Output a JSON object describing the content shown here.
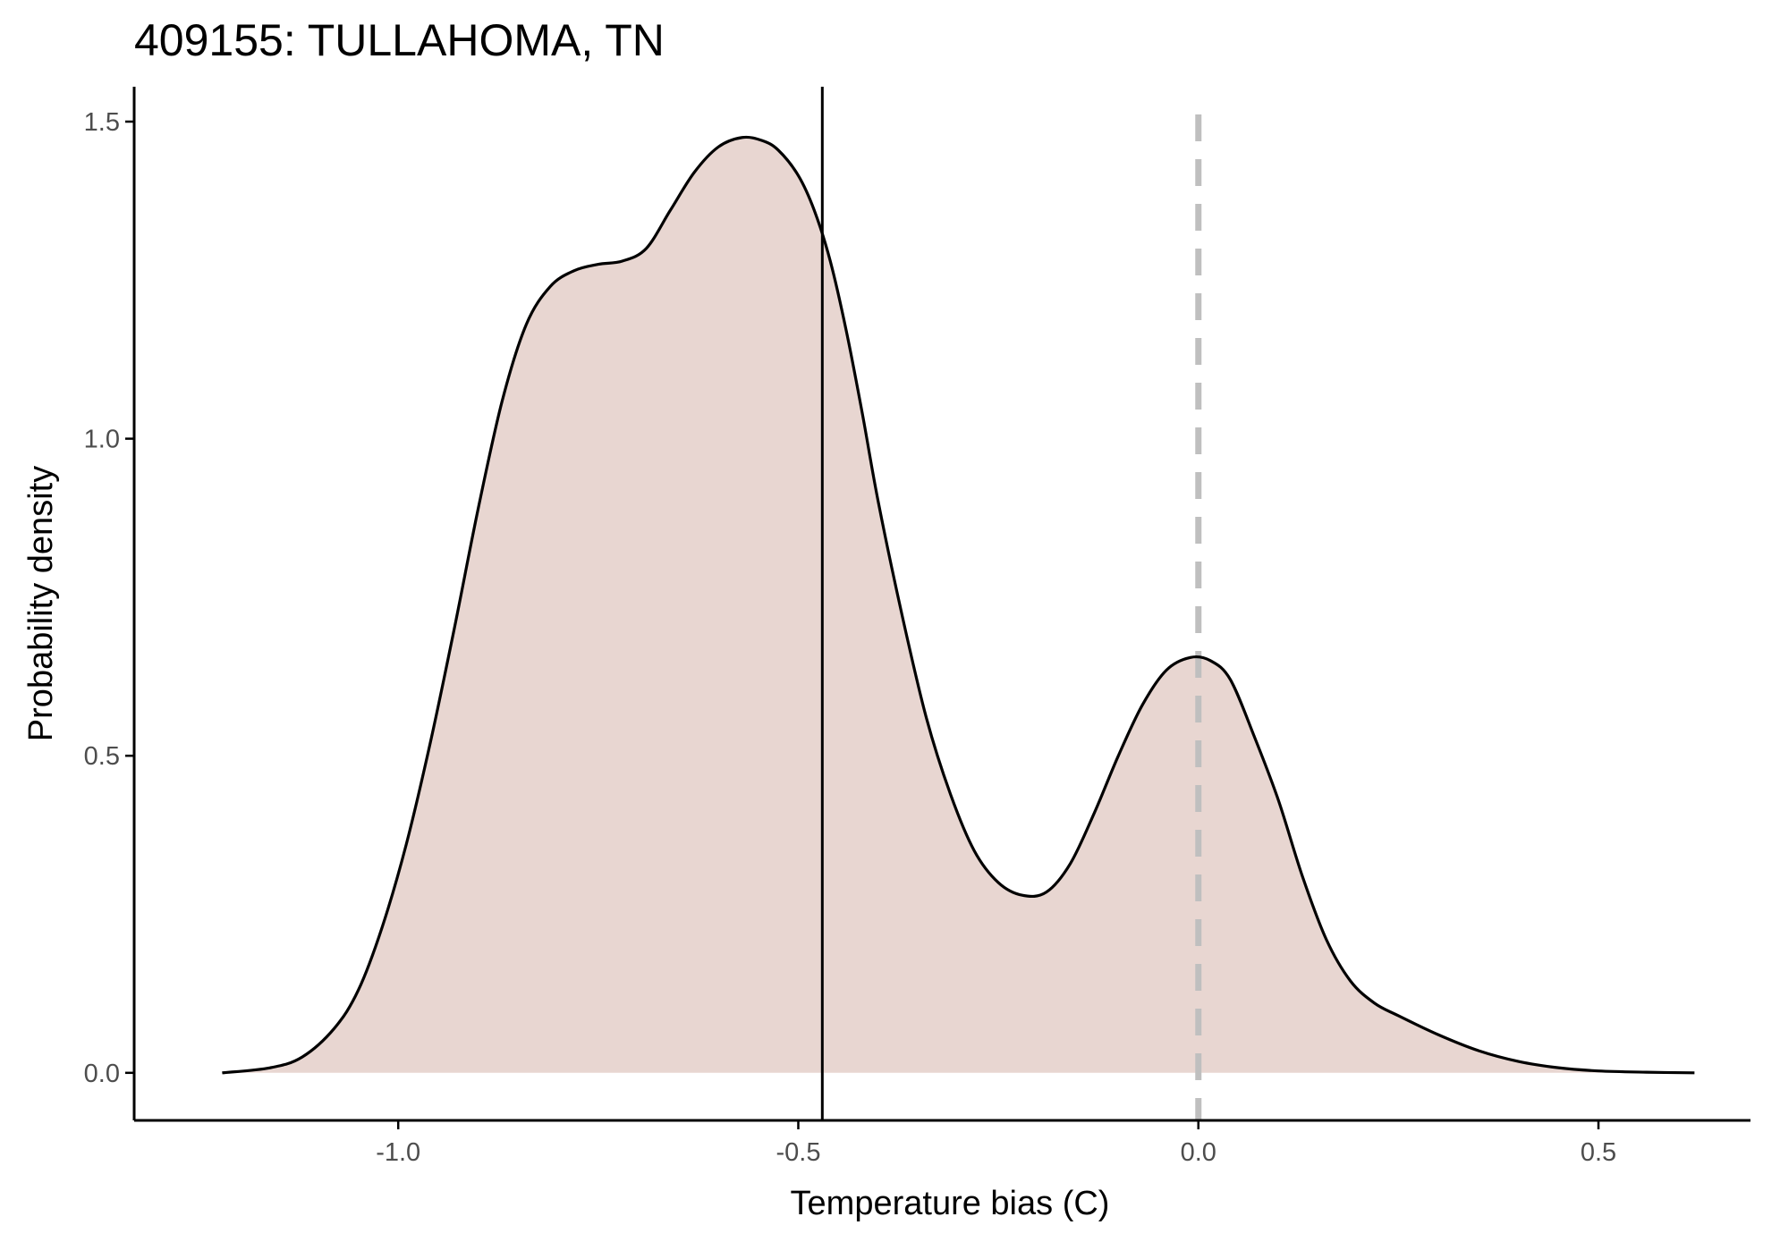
{
  "chart_data": {
    "type": "area",
    "title": "409155: TULLAHOMA, TN",
    "xlabel": "Temperature bias (C)",
    "ylabel": "Probability density",
    "xlim": [
      -1.33,
      0.69
    ],
    "ylim": [
      -0.075,
      1.555
    ],
    "x_ticks": [
      -1.0,
      -0.5,
      0.0,
      0.5
    ],
    "x_tick_labels": [
      "-1.0",
      "-0.5",
      "0.0",
      "0.5"
    ],
    "y_ticks": [
      0.0,
      0.5,
      1.0,
      1.5
    ],
    "y_tick_labels": [
      "0.0",
      "0.5",
      "1.0",
      "1.5"
    ],
    "grid": false,
    "legend": "none",
    "colors": {
      "fill": "#e8d6d1",
      "curve": "#000000",
      "reference_line": "#000000",
      "zero_line": "#bfbfbf",
      "axis": "#000000",
      "tick_label": "#4d4d4d"
    },
    "series": [
      {
        "x": [
          -1.22,
          -1.16,
          -1.12,
          -1.08,
          -1.05,
          -1.02,
          -0.99,
          -0.96,
          -0.93,
          -0.9,
          -0.87,
          -0.84,
          -0.81,
          -0.78,
          -0.75,
          -0.72,
          -0.69,
          -0.66,
          -0.63,
          -0.6,
          -0.57,
          -0.545,
          -0.525,
          -0.5,
          -0.48,
          -0.46,
          -0.44,
          -0.42,
          -0.4,
          -0.37,
          -0.34,
          -0.31,
          -0.28,
          -0.25,
          -0.22,
          -0.19,
          -0.16,
          -0.13,
          -0.1,
          -0.07,
          -0.04,
          -0.01,
          0.015,
          0.04,
          0.07,
          0.1,
          0.13,
          0.16,
          0.19,
          0.22,
          0.25,
          0.3,
          0.35,
          0.4,
          0.45,
          0.5,
          0.56,
          0.62
        ],
        "y": [
          0.0,
          0.008,
          0.025,
          0.07,
          0.13,
          0.23,
          0.36,
          0.52,
          0.7,
          0.89,
          1.06,
          1.18,
          1.24,
          1.265,
          1.275,
          1.28,
          1.3,
          1.36,
          1.42,
          1.46,
          1.475,
          1.47,
          1.455,
          1.415,
          1.36,
          1.28,
          1.17,
          1.04,
          0.9,
          0.72,
          0.56,
          0.44,
          0.35,
          0.3,
          0.28,
          0.285,
          0.33,
          0.41,
          0.5,
          0.58,
          0.635,
          0.655,
          0.65,
          0.62,
          0.53,
          0.43,
          0.31,
          0.21,
          0.145,
          0.11,
          0.09,
          0.06,
          0.035,
          0.018,
          0.008,
          0.003,
          0.001,
          0.0
        ]
      }
    ],
    "reference_lines": [
      {
        "x": -0.47,
        "style": "solid"
      },
      {
        "x": 0.0,
        "style": "dashed"
      }
    ]
  }
}
